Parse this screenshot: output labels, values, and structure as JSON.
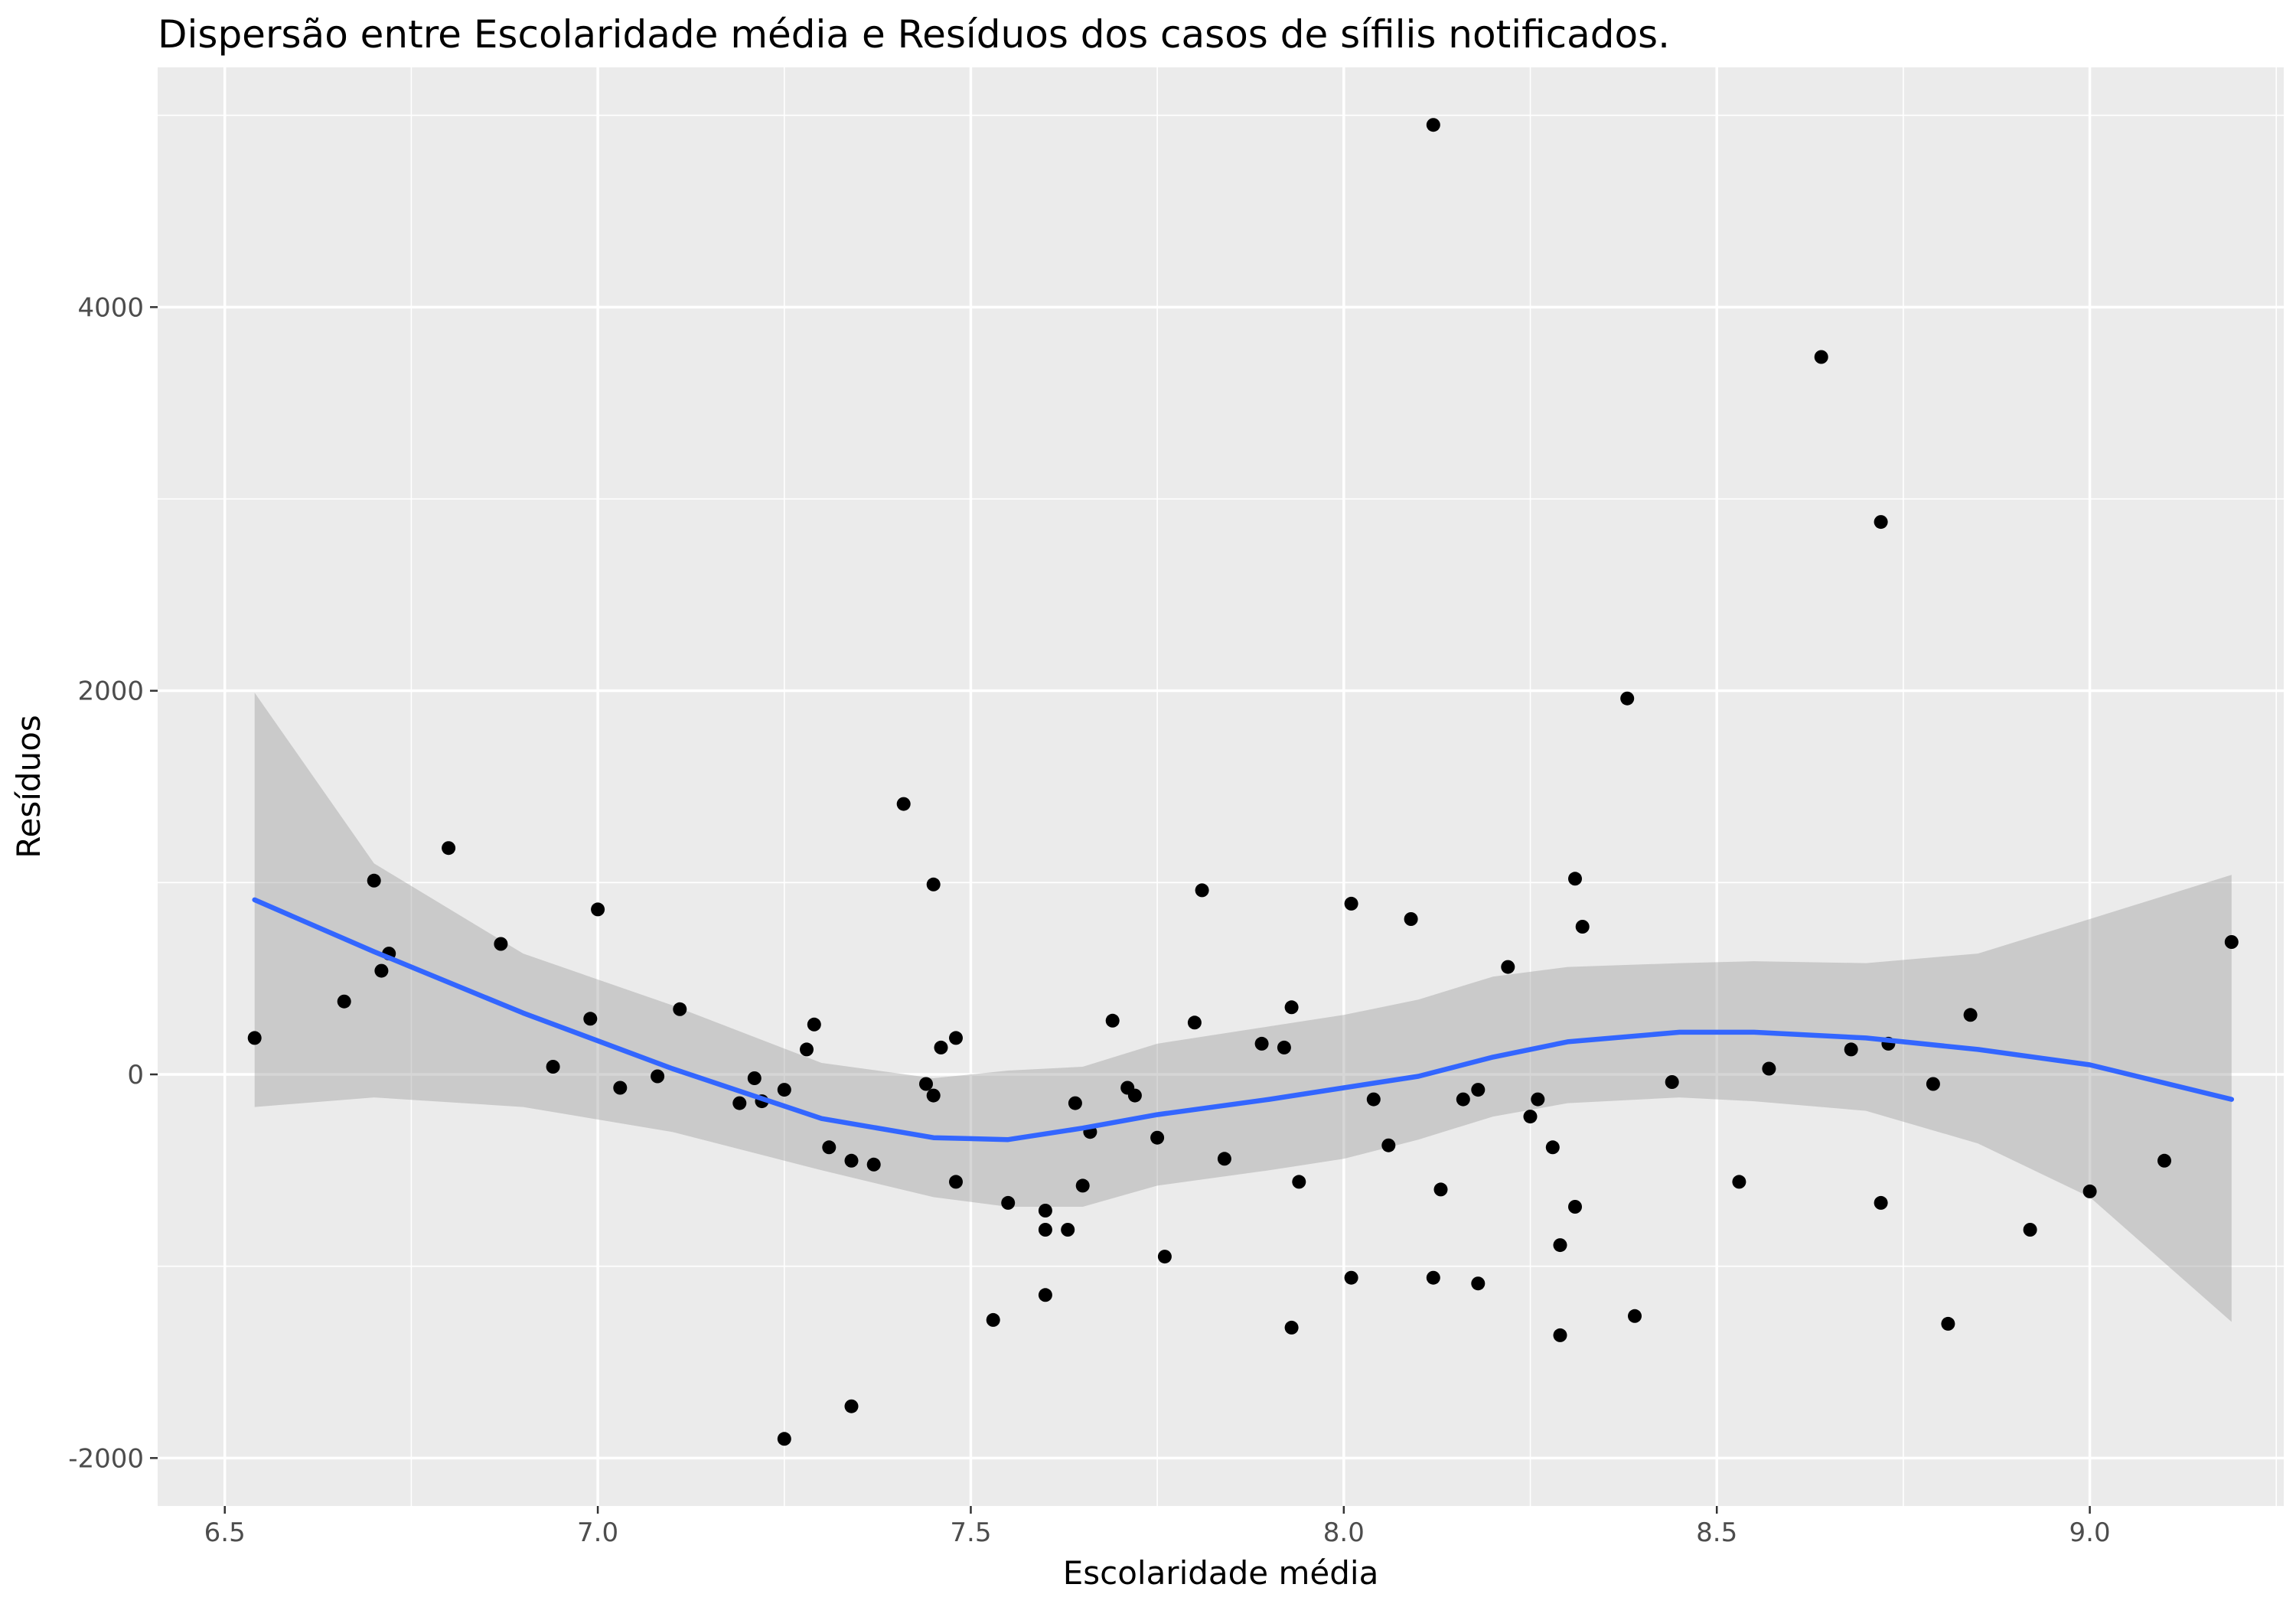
{
  "colors": {
    "panel": "#ebebeb",
    "grid": "#ffffff",
    "point": "#000000",
    "smooth_line": "#3366ff",
    "ribbon": "#999999"
  },
  "chart_data": {
    "type": "scatter",
    "title": "Dispersão entre Escolaridade média e Resíduos dos casos de sífilis notificados.",
    "xlabel": "Escolaridade média",
    "ylabel": "Resíduos",
    "xlim": [
      6.41,
      9.26
    ],
    "ylim": [
      -2250,
      5250
    ],
    "x_ticks": [
      6.5,
      7.0,
      7.5,
      8.0,
      8.5,
      9.0
    ],
    "x_tick_labels": [
      "6.5",
      "7.0",
      "7.5",
      "8.0",
      "8.5",
      "9.0"
    ],
    "y_ticks": [
      -2000,
      0,
      2000,
      4000
    ],
    "y_tick_labels": [
      "-2000",
      "0",
      "2000",
      "4000"
    ],
    "grid": true,
    "points": [
      {
        "x": 6.54,
        "y": 190
      },
      {
        "x": 6.66,
        "y": 380
      },
      {
        "x": 6.7,
        "y": 1010
      },
      {
        "x": 6.71,
        "y": 540
      },
      {
        "x": 6.72,
        "y": 630
      },
      {
        "x": 6.8,
        "y": 1180
      },
      {
        "x": 6.87,
        "y": 680
      },
      {
        "x": 6.94,
        "y": 40
      },
      {
        "x": 6.99,
        "y": 290
      },
      {
        "x": 7.0,
        "y": 860
      },
      {
        "x": 7.03,
        "y": -70
      },
      {
        "x": 7.08,
        "y": -10
      },
      {
        "x": 7.11,
        "y": 340
      },
      {
        "x": 7.19,
        "y": -150
      },
      {
        "x": 7.21,
        "y": -20
      },
      {
        "x": 7.22,
        "y": -140
      },
      {
        "x": 7.25,
        "y": -80
      },
      {
        "x": 7.25,
        "y": -1900
      },
      {
        "x": 7.28,
        "y": 130
      },
      {
        "x": 7.29,
        "y": 260
      },
      {
        "x": 7.31,
        "y": -380
      },
      {
        "x": 7.34,
        "y": -450
      },
      {
        "x": 7.34,
        "y": -1730
      },
      {
        "x": 7.37,
        "y": -470
      },
      {
        "x": 7.41,
        "y": 1410
      },
      {
        "x": 7.44,
        "y": -50
      },
      {
        "x": 7.45,
        "y": -110
      },
      {
        "x": 7.45,
        "y": 990
      },
      {
        "x": 7.46,
        "y": 140
      },
      {
        "x": 7.48,
        "y": 190
      },
      {
        "x": 7.48,
        "y": -560
      },
      {
        "x": 7.53,
        "y": -1280
      },
      {
        "x": 7.55,
        "y": -670
      },
      {
        "x": 7.6,
        "y": -710
      },
      {
        "x": 7.6,
        "y": -810
      },
      {
        "x": 7.6,
        "y": -1150
      },
      {
        "x": 7.63,
        "y": -810
      },
      {
        "x": 7.64,
        "y": -150
      },
      {
        "x": 7.65,
        "y": -580
      },
      {
        "x": 7.66,
        "y": -300
      },
      {
        "x": 7.69,
        "y": 280
      },
      {
        "x": 7.71,
        "y": -70
      },
      {
        "x": 7.72,
        "y": -110
      },
      {
        "x": 7.75,
        "y": -330
      },
      {
        "x": 7.76,
        "y": -950
      },
      {
        "x": 7.8,
        "y": 270
      },
      {
        "x": 7.81,
        "y": 960
      },
      {
        "x": 7.84,
        "y": -440
      },
      {
        "x": 7.89,
        "y": 160
      },
      {
        "x": 7.92,
        "y": 140
      },
      {
        "x": 7.93,
        "y": 350
      },
      {
        "x": 7.93,
        "y": -1320
      },
      {
        "x": 7.94,
        "y": -560
      },
      {
        "x": 8.01,
        "y": 890
      },
      {
        "x": 8.01,
        "y": -1060
      },
      {
        "x": 8.04,
        "y": -130
      },
      {
        "x": 8.06,
        "y": -370
      },
      {
        "x": 8.09,
        "y": 810
      },
      {
        "x": 8.12,
        "y": 4950
      },
      {
        "x": 8.12,
        "y": -1060
      },
      {
        "x": 8.13,
        "y": -600
      },
      {
        "x": 8.16,
        "y": -130
      },
      {
        "x": 8.18,
        "y": -80
      },
      {
        "x": 8.18,
        "y": -1090
      },
      {
        "x": 8.22,
        "y": 560
      },
      {
        "x": 8.25,
        "y": -220
      },
      {
        "x": 8.26,
        "y": -130
      },
      {
        "x": 8.28,
        "y": -380
      },
      {
        "x": 8.29,
        "y": -890
      },
      {
        "x": 8.29,
        "y": -1360
      },
      {
        "x": 8.31,
        "y": 1020
      },
      {
        "x": 8.31,
        "y": -690
      },
      {
        "x": 8.32,
        "y": 770
      },
      {
        "x": 8.38,
        "y": 1960
      },
      {
        "x": 8.39,
        "y": -1260
      },
      {
        "x": 8.44,
        "y": -40
      },
      {
        "x": 8.53,
        "y": -560
      },
      {
        "x": 8.57,
        "y": 30
      },
      {
        "x": 8.64,
        "y": 3740
      },
      {
        "x": 8.68,
        "y": 130
      },
      {
        "x": 8.72,
        "y": 2880
      },
      {
        "x": 8.72,
        "y": -670
      },
      {
        "x": 8.73,
        "y": 160
      },
      {
        "x": 8.79,
        "y": -50
      },
      {
        "x": 8.81,
        "y": -1300
      },
      {
        "x": 8.84,
        "y": 310
      },
      {
        "x": 8.92,
        "y": -810
      },
      {
        "x": 9.0,
        "y": -610
      },
      {
        "x": 9.1,
        "y": -450
      },
      {
        "x": 9.19,
        "y": 690
      }
    ],
    "smooth": {
      "method": "loess",
      "x": [
        6.54,
        6.7,
        6.9,
        7.1,
        7.3,
        7.45,
        7.55,
        7.65,
        7.75,
        7.9,
        8.0,
        8.1,
        8.2,
        8.3,
        8.45,
        8.55,
        8.7,
        8.85,
        9.0,
        9.19
      ],
      "y": [
        910,
        640,
        320,
        30,
        -230,
        -330,
        -340,
        -280,
        -210,
        -130,
        -70,
        -10,
        90,
        170,
        220,
        220,
        190,
        130,
        50,
        -130
      ],
      "lower": [
        -170,
        -120,
        -170,
        -300,
        -500,
        -640,
        -690,
        -690,
        -580,
        -500,
        -440,
        -340,
        -220,
        -150,
        -120,
        -140,
        -190,
        -360,
        -640,
        -1290
      ],
      "upper": [
        1990,
        1100,
        630,
        360,
        60,
        -20,
        20,
        40,
        160,
        250,
        310,
        390,
        510,
        560,
        580,
        590,
        580,
        630,
        810,
        1040
      ]
    }
  }
}
